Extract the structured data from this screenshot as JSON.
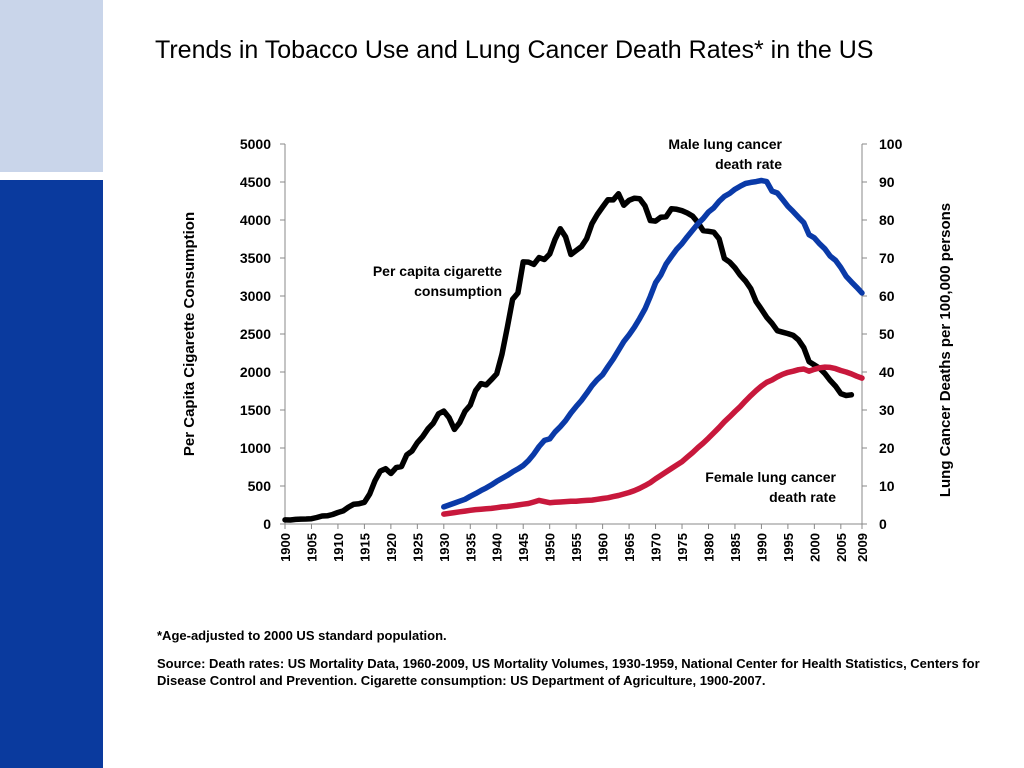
{
  "slide": {
    "title": "Trends in Tobacco Use and Lung Cancer Death Rates* in the US",
    "footnote": "*Age-adjusted to 2000 US standard population.",
    "source": "Source: Death rates: US Mortality Data, 1960-2009, US Mortality Volumes, 1930-1959, National Center for Health Statistics, Centers for Disease Control and Prevention. Cigarette consumption: US Department of Agriculture, 1900-2007."
  },
  "chart_data": {
    "type": "line",
    "title": "",
    "xlabel": "",
    "ylabel": "Per Capita Cigarette Consumption",
    "y2label": "Lung Cancer Deaths per 100,000 persons",
    "xlim": [
      1900,
      2009
    ],
    "ylim": [
      0,
      5000
    ],
    "y2lim": [
      0,
      100
    ],
    "x_ticks": [
      "1900",
      "1905",
      "1910",
      "1915",
      "1920",
      "1925",
      "1930",
      "1935",
      "1940",
      "1945",
      "1950",
      "1955",
      "1960",
      "1965",
      "1970",
      "1975",
      "1980",
      "1985",
      "1990",
      "1995",
      "2000",
      "2005",
      "2009"
    ],
    "y_ticks": [
      "0",
      "500",
      "1000",
      "1500",
      "2000",
      "2500",
      "3000",
      "3500",
      "4000",
      "4500",
      "5000"
    ],
    "y2_ticks": [
      "0",
      "10",
      "20",
      "30",
      "40",
      "50",
      "60",
      "70",
      "80",
      "90",
      "100"
    ],
    "grid": false,
    "colors": {
      "cigarettes": "#000000",
      "male": "#0a3aa8",
      "female": "#c8183c"
    },
    "series": [
      {
        "name": "Per capita cigarette consumption",
        "axis": "left",
        "x": [
          1900,
          1901,
          1902,
          1903,
          1904,
          1905,
          1906,
          1907,
          1908,
          1909,
          1910,
          1911,
          1912,
          1913,
          1914,
          1915,
          1916,
          1917,
          1918,
          1919,
          1920,
          1921,
          1922,
          1923,
          1924,
          1925,
          1926,
          1927,
          1928,
          1929,
          1930,
          1931,
          1932,
          1933,
          1934,
          1935,
          1936,
          1937,
          1938,
          1939,
          1940,
          1941,
          1942,
          1943,
          1944,
          1945,
          1946,
          1947,
          1948,
          1949,
          1950,
          1951,
          1952,
          1953,
          1954,
          1955,
          1956,
          1957,
          1958,
          1959,
          1960,
          1961,
          1962,
          1963,
          1964,
          1965,
          1966,
          1967,
          1968,
          1969,
          1970,
          1971,
          1972,
          1973,
          1974,
          1975,
          1976,
          1977,
          1978,
          1979,
          1980,
          1981,
          1982,
          1983,
          1984,
          1985,
          1986,
          1987,
          1988,
          1989,
          1990,
          1991,
          1992,
          1993,
          1994,
          1995,
          1996,
          1997,
          1998,
          1999,
          2000,
          2001,
          2002,
          2003,
          2004,
          2005,
          2006,
          2007
        ],
        "values": [
          54,
          53,
          60,
          64,
          66,
          70,
          86,
          105,
          108,
          125,
          151,
          173,
          223,
          260,
          267,
          285,
          395,
          570,
          696,
          727,
          665,
          742,
          757,
          911,
          960,
          1070,
          1149,
          1251,
          1325,
          1450,
          1485,
          1399,
          1245,
          1334,
          1483,
          1564,
          1754,
          1847,
          1830,
          1900,
          1976,
          2236,
          2585,
          2956,
          3039,
          3449,
          3446,
          3416,
          3505,
          3480,
          3552,
          3744,
          3886,
          3778,
          3546,
          3597,
          3650,
          3755,
          3953,
          4073,
          4171,
          4266,
          4265,
          4345,
          4195,
          4259,
          4287,
          4280,
          4186,
          3993,
          3985,
          4037,
          4043,
          4148,
          4141,
          4123,
          4092,
          4051,
          3967,
          3861,
          3851,
          3840,
          3753,
          3494,
          3446,
          3370,
          3274,
          3197,
          3096,
          2926,
          2826,
          2720,
          2641,
          2543,
          2524,
          2505,
          2482,
          2423,
          2320,
          2136,
          2092,
          2049,
          1979,
          1890,
          1814,
          1716,
          1691,
          1700
        ]
      },
      {
        "name": "Male lung cancer death rate",
        "axis": "right",
        "x": [
          1930,
          1931,
          1932,
          1933,
          1934,
          1935,
          1936,
          1937,
          1938,
          1939,
          1940,
          1941,
          1942,
          1943,
          1944,
          1945,
          1946,
          1947,
          1948,
          1949,
          1950,
          1951,
          1952,
          1953,
          1954,
          1955,
          1956,
          1957,
          1958,
          1959,
          1960,
          1961,
          1962,
          1963,
          1964,
          1965,
          1966,
          1967,
          1968,
          1969,
          1970,
          1971,
          1972,
          1973,
          1974,
          1975,
          1976,
          1977,
          1978,
          1979,
          1980,
          1981,
          1982,
          1983,
          1984,
          1985,
          1986,
          1987,
          1988,
          1989,
          1990,
          1991,
          1992,
          1993,
          1994,
          1995,
          1996,
          1997,
          1998,
          1999,
          2000,
          2001,
          2002,
          2003,
          2004,
          2005,
          2006,
          2007,
          2008,
          2009
        ],
        "values": [
          4.5,
          5.0,
          5.5,
          6.0,
          6.5,
          7.3,
          8.0,
          8.8,
          9.5,
          10.3,
          11.2,
          12.0,
          12.8,
          13.7,
          14.5,
          15.4,
          16.7,
          18.4,
          20.4,
          22.0,
          22.4,
          24.2,
          25.6,
          27.2,
          29.2,
          30.9,
          32.5,
          34.4,
          36.4,
          38.0,
          39.3,
          41.4,
          43.4,
          45.7,
          48.0,
          49.8,
          51.8,
          54.1,
          56.6,
          59.9,
          63.5,
          65.5,
          68.4,
          70.4,
          72.3,
          73.8,
          75.6,
          77.3,
          79.0,
          80.4,
          82.1,
          83.2,
          84.9,
          86.2,
          87.0,
          88.1,
          88.9,
          89.6,
          89.9,
          90.1,
          90.4,
          90.1,
          87.6,
          87.1,
          85.4,
          83.6,
          82.2,
          80.7,
          79.3,
          76.1,
          75.3,
          73.7,
          72.4,
          70.5,
          69.4,
          67.5,
          65.2,
          63.7,
          62.3,
          60.8
        ]
      },
      {
        "name": "Female lung cancer death rate",
        "axis": "right",
        "x": [
          1930,
          1931,
          1932,
          1933,
          1934,
          1935,
          1936,
          1937,
          1938,
          1939,
          1940,
          1941,
          1942,
          1943,
          1944,
          1945,
          1946,
          1947,
          1948,
          1949,
          1950,
          1951,
          1952,
          1953,
          1954,
          1955,
          1956,
          1957,
          1958,
          1959,
          1960,
          1961,
          1962,
          1963,
          1964,
          1965,
          1966,
          1967,
          1968,
          1969,
          1970,
          1971,
          1972,
          1973,
          1974,
          1975,
          1976,
          1977,
          1978,
          1979,
          1980,
          1981,
          1982,
          1983,
          1984,
          1985,
          1986,
          1987,
          1988,
          1989,
          1990,
          1991,
          1992,
          1993,
          1994,
          1995,
          1996,
          1997,
          1998,
          1999,
          2000,
          2001,
          2002,
          2003,
          2004,
          2005,
          2006,
          2007,
          2008,
          2009
        ],
        "values": [
          2.6,
          2.8,
          3.0,
          3.2,
          3.4,
          3.6,
          3.8,
          3.9,
          4.0,
          4.1,
          4.3,
          4.5,
          4.6,
          4.8,
          5.0,
          5.2,
          5.4,
          5.8,
          6.2,
          5.9,
          5.6,
          5.7,
          5.8,
          5.9,
          6.0,
          6.0,
          6.1,
          6.2,
          6.3,
          6.5,
          6.7,
          6.9,
          7.2,
          7.5,
          7.9,
          8.3,
          8.8,
          9.4,
          10.1,
          10.9,
          11.9,
          12.8,
          13.7,
          14.6,
          15.5,
          16.4,
          17.6,
          18.8,
          20.1,
          21.3,
          22.6,
          24.0,
          25.4,
          26.9,
          28.2,
          29.6,
          30.9,
          32.4,
          33.8,
          35.1,
          36.3,
          37.3,
          37.9,
          38.7,
          39.4,
          39.9,
          40.2,
          40.6,
          40.8,
          40.2,
          40.7,
          41.1,
          41.3,
          41.2,
          40.9,
          40.4,
          40.0,
          39.5,
          38.9,
          38.4
        ]
      }
    ],
    "annotations": {
      "cigarettes": [
        "Per capita cigarette",
        "consumption"
      ],
      "male": [
        "Male lung cancer",
        "death rate"
      ],
      "female": [
        "Female lung cancer",
        "death rate"
      ]
    }
  }
}
